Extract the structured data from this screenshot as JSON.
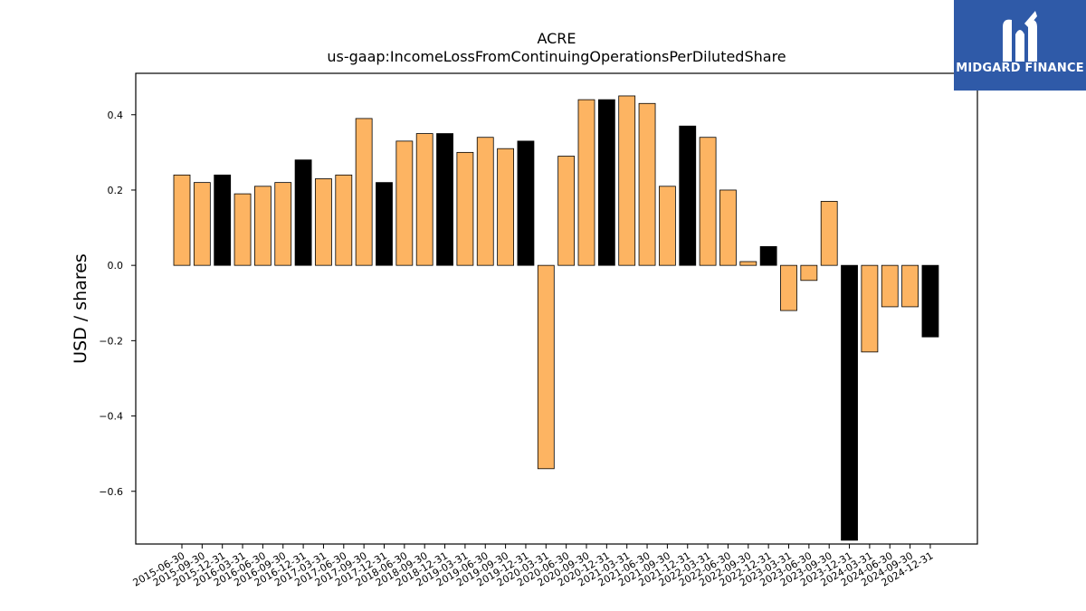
{
  "chart_data": {
    "type": "bar",
    "title": "ACRE",
    "subtitle": "us-gaap:IncomeLossFromContinuingOperationsPerDilutedShare",
    "xlabel": "",
    "ylabel": "USD / shares",
    "ylim": [
      -0.74,
      0.51
    ],
    "yticks": [
      "0.4",
      "0.2",
      "0.0",
      "−0.2",
      "−0.4",
      "−0.6"
    ],
    "grid": false,
    "colors": {
      "quarter": "#fdb462",
      "year_end": "#000000",
      "edge": "#000000"
    },
    "categories": [
      "2015-06-30",
      "2015-09-30",
      "2015-12-31",
      "2016-03-31",
      "2016-06-30",
      "2016-09-30",
      "2016-12-31",
      "2017-03-31",
      "2017-06-30",
      "2017-09-30",
      "2017-12-31",
      "2018-06-30",
      "2018-09-30",
      "2018-12-31",
      "2019-03-31",
      "2019-06-30",
      "2019-09-30",
      "2019-12-31",
      "2020-03-31",
      "2020-06-30",
      "2020-09-30",
      "2020-12-31",
      "2021-03-31",
      "2021-06-30",
      "2021-09-30",
      "2021-12-31",
      "2022-03-31",
      "2022-06-30",
      "2022-09-30",
      "2022-12-31",
      "2023-03-31",
      "2023-06-30",
      "2023-09-30",
      "2023-12-31",
      "2024-03-31",
      "2024-06-30",
      "2024-09-30",
      "2024-12-31"
    ],
    "values": [
      0.24,
      0.22,
      0.24,
      0.19,
      0.21,
      0.22,
      0.28,
      0.23,
      0.24,
      0.39,
      0.22,
      0.33,
      0.35,
      0.35,
      0.3,
      0.34,
      0.31,
      0.33,
      -0.54,
      0.29,
      0.44,
      0.44,
      0.45,
      0.43,
      0.21,
      0.37,
      0.34,
      0.2,
      0.01,
      0.05,
      -0.12,
      -0.04,
      0.17,
      -0.73,
      -0.23,
      -0.11,
      -0.11,
      -0.19
    ]
  },
  "logo": {
    "name": "MIDGARD FINANCE"
  }
}
